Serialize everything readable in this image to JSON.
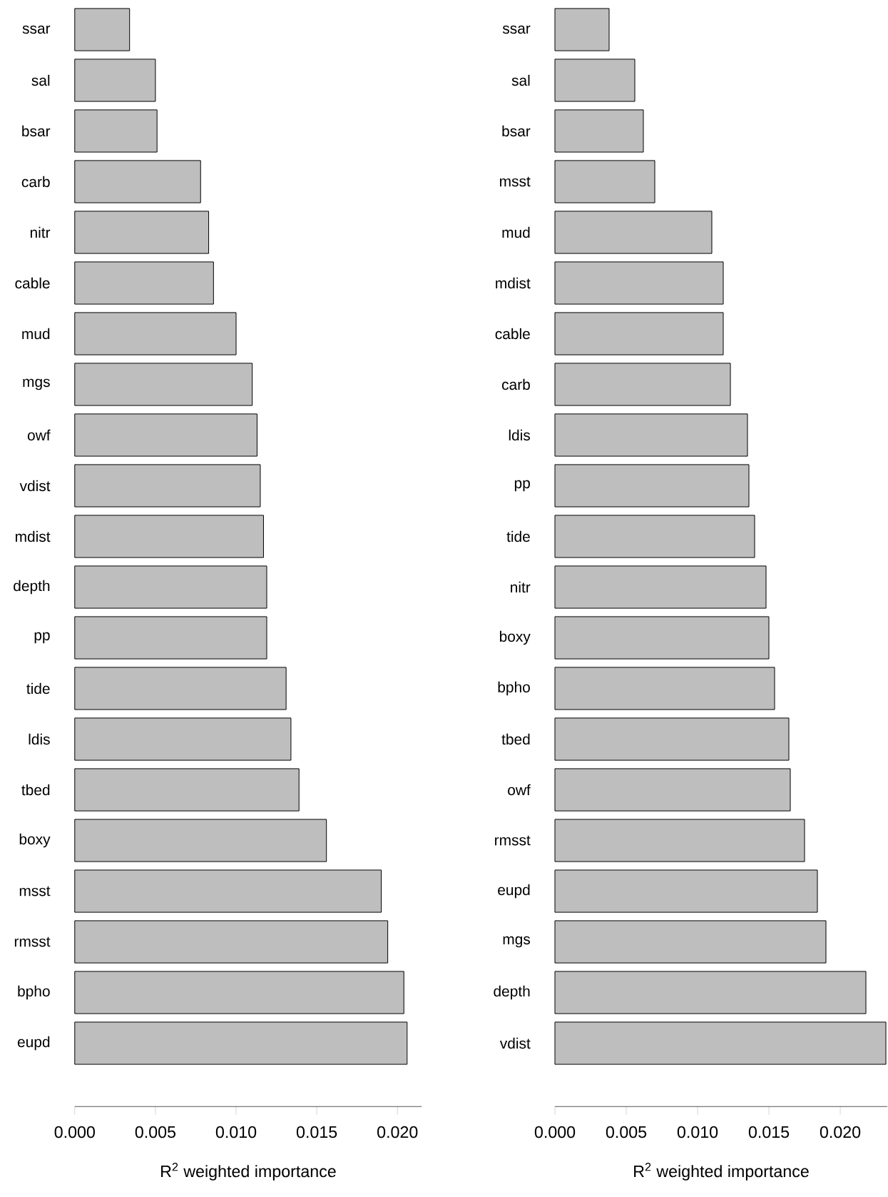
{
  "chart_data": [
    {
      "type": "bar",
      "orientation": "horizontal",
      "xlabel": "R$^{2}$ weighted importance",
      "color": "#bebebe",
      "categories": [
        "ssar",
        "sal",
        "bsar",
        "carb",
        "nitr",
        "cable",
        "mud",
        "mgs",
        "owf",
        "vdist",
        "mdist",
        "depth",
        "pp",
        "tide",
        "ldis",
        "tbed",
        "boxy",
        "msst",
        "rmsst",
        "bpho",
        "eupd"
      ],
      "values": [
        0.0034,
        0.005,
        0.0051,
        0.0078,
        0.0083,
        0.0086,
        0.01,
        0.011,
        0.0113,
        0.0115,
        0.0117,
        0.0119,
        0.0119,
        0.0131,
        0.0134,
        0.0139,
        0.0156,
        0.019,
        0.0194,
        0.0204,
        0.0206
      ],
      "xlim": [
        0,
        0.0215
      ],
      "xticks": [
        {
          "value": 0,
          "label": "0.000"
        },
        {
          "value": 0.005,
          "label": "0.005"
        },
        {
          "value": 0.01,
          "label": "0.010"
        },
        {
          "value": 0.015,
          "label": "0.015"
        },
        {
          "value": 0.02,
          "label": "0.020"
        }
      ]
    },
    {
      "type": "bar",
      "orientation": "horizontal",
      "xlabel": "R$^{2}$ weighted importance",
      "color": "#bebebe",
      "categories": [
        "ssar",
        "sal",
        "bsar",
        "msst",
        "mud",
        "mdist",
        "cable",
        "carb",
        "ldis",
        "pp",
        "tide",
        "nitr",
        "boxy",
        "bpho",
        "tbed",
        "owf",
        "rmsst",
        "eupd",
        "mgs",
        "depth",
        "vdist"
      ],
      "values": [
        0.0038,
        0.0056,
        0.0062,
        0.007,
        0.011,
        0.0118,
        0.0118,
        0.0123,
        0.0135,
        0.0136,
        0.014,
        0.0148,
        0.015,
        0.0154,
        0.0164,
        0.0165,
        0.0175,
        0.0184,
        0.019,
        0.0218,
        0.0232
      ],
      "xlim": [
        0,
        0.0233
      ],
      "xticks": [
        {
          "value": 0,
          "label": "0.000"
        },
        {
          "value": 0.005,
          "label": "0.005"
        },
        {
          "value": 0.01,
          "label": "0.010"
        },
        {
          "value": 0.015,
          "label": "0.015"
        },
        {
          "value": 0.02,
          "label": "0.020"
        }
      ]
    }
  ]
}
